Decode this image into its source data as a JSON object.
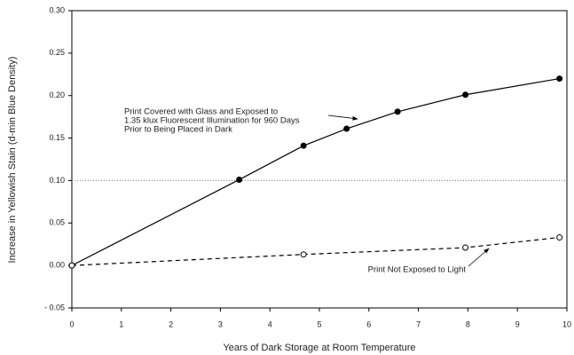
{
  "chart_data": {
    "type": "line",
    "xlabel": "Years of Dark Storage at Room Temperature",
    "ylabel": "Increase in Yellowish Stain (d-min Blue Density)",
    "xlim": [
      0,
      10
    ],
    "xticks": [
      0,
      1,
      2,
      3,
      4,
      5,
      6,
      7,
      8,
      9,
      10
    ],
    "ylim": [
      -0.05,
      0.3
    ],
    "yticks": [
      {
        "value": -0.05,
        "label": "- 0.05"
      },
      {
        "value": 0,
        "label": "0.00"
      },
      0.05,
      {
        "value": 0.1,
        "label": "0.10"
      },
      0.15,
      {
        "value": 0.2,
        "label": "0.20"
      },
      0.25,
      {
        "value": 0.3,
        "label": "0.30"
      }
    ],
    "hline": 0.1,
    "series": [
      {
        "color": "#000000",
        "style": "solid",
        "marker": "filled",
        "x": [
          0,
          3.38,
          4.68,
          5.55,
          6.58,
          7.95,
          9.85
        ],
        "values": [
          0,
          0.101,
          0.141,
          0.161,
          0.181,
          0.201,
          0.22
        ]
      },
      {
        "color": "#000000",
        "style": "dashed",
        "marker": "open",
        "x": [
          0,
          4.68,
          7.95,
          9.85
        ],
        "values": [
          0,
          0.013,
          0.021,
          0.033
        ]
      }
    ],
    "annotations": [
      {
        "lines": [
          "Print Covered with Glass and Exposed to",
          "1.35 klux Fluorescent Illumination for 960 Days",
          "Prior to Being Placed in Dark"
        ]
      },
      {
        "lines": [
          "Print Not Exposed to Light"
        ]
      }
    ]
  }
}
